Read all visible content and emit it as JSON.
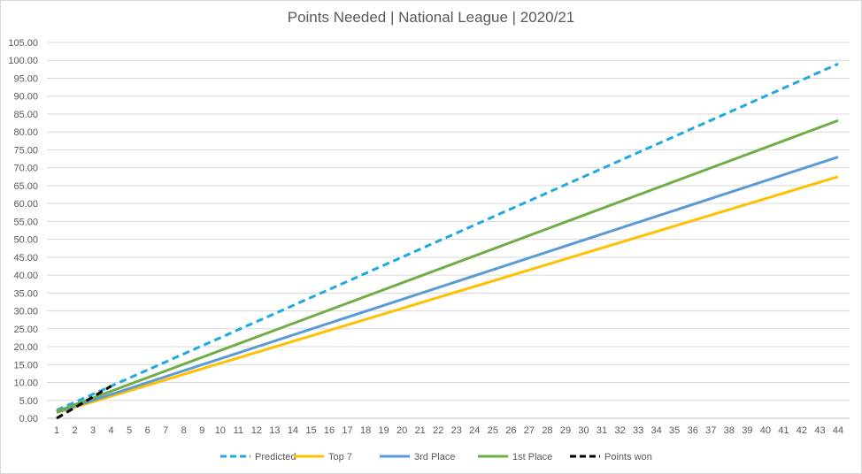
{
  "chart_data": {
    "type": "line",
    "title": "Points Needed  |  National League  |  2020/21",
    "xlabel": "",
    "ylabel": "",
    "x": [
      1,
      2,
      3,
      4,
      5,
      6,
      7,
      8,
      9,
      10,
      11,
      12,
      13,
      14,
      15,
      16,
      17,
      18,
      19,
      20,
      21,
      22,
      23,
      24,
      25,
      26,
      27,
      28,
      29,
      30,
      31,
      32,
      33,
      34,
      35,
      36,
      37,
      38,
      39,
      40,
      41,
      42,
      43,
      44
    ],
    "ylim": [
      0,
      105
    ],
    "ytick_step": 5,
    "ytick_format": "0.00",
    "grid": true,
    "legend_position": "bottom",
    "series": [
      {
        "name": "Predicted",
        "color": "#1fa9e1",
        "dash": true,
        "x": [
          1,
          44
        ],
        "values": [
          2.25,
          99.0
        ]
      },
      {
        "name": "Top 7",
        "color": "#ffc000",
        "dash": false,
        "x": [
          1,
          44
        ],
        "values": [
          1.55,
          67.5
        ]
      },
      {
        "name": "3rd Place",
        "color": "#5b9bd5",
        "dash": false,
        "x": [
          1,
          44
        ],
        "values": [
          1.7,
          73.0
        ]
      },
      {
        "name": "1st Place",
        "color": "#70ad47",
        "dash": false,
        "x": [
          1,
          44
        ],
        "values": [
          1.9,
          83.2
        ]
      },
      {
        "name": "Points won",
        "color": "#000000",
        "dash": true,
        "x": [
          1,
          2,
          3,
          4
        ],
        "values": [
          0,
          3,
          6,
          9
        ]
      }
    ]
  }
}
